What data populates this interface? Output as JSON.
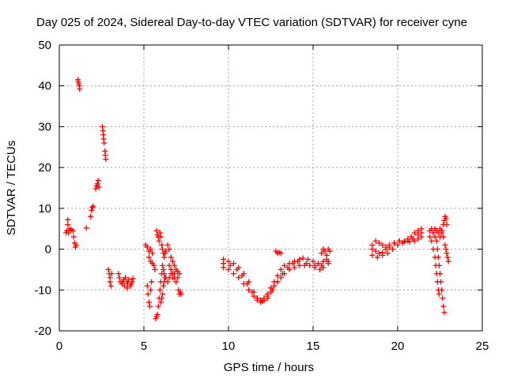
{
  "chart_data": {
    "type": "scatter",
    "title": "Day 025 of 2024, Sidereal Day-to-day VTEC variation (SDTVAR) for receiver cyne",
    "xlabel": "GPS time / hours",
    "ylabel": "SDTVAR / TECUs",
    "xlim": [
      0,
      25
    ],
    "ylim": [
      -20,
      50
    ],
    "xticks": [
      0,
      5,
      10,
      15,
      20,
      25
    ],
    "yticks": [
      -20,
      -10,
      0,
      10,
      20,
      30,
      40,
      50
    ],
    "grid": true,
    "marker": "+",
    "color": "#ff0000",
    "series": [
      {
        "name": "SDTVAR",
        "points": [
          [
            0.4,
            4
          ],
          [
            0.45,
            4.5
          ],
          [
            0.5,
            6
          ],
          [
            0.5,
            7.2
          ],
          [
            0.55,
            4
          ],
          [
            0.6,
            5
          ],
          [
            0.7,
            4.8
          ],
          [
            0.8,
            4.5
          ],
          [
            0.85,
            3
          ],
          [
            0.9,
            1.5
          ],
          [
            0.95,
            0.5
          ],
          [
            1.0,
            1
          ],
          [
            1.1,
            41.5
          ],
          [
            1.12,
            41
          ],
          [
            1.15,
            40.5
          ],
          [
            1.18,
            40
          ],
          [
            1.2,
            39.2
          ],
          [
            1.6,
            5.2
          ],
          [
            1.85,
            8
          ],
          [
            1.9,
            9.5
          ],
          [
            1.95,
            10.2
          ],
          [
            2.0,
            10.5
          ],
          [
            2.15,
            14.8
          ],
          [
            2.2,
            15.5
          ],
          [
            2.25,
            16
          ],
          [
            2.3,
            16.8
          ],
          [
            2.35,
            15.2
          ],
          [
            2.55,
            30
          ],
          [
            2.58,
            29
          ],
          [
            2.6,
            28
          ],
          [
            2.62,
            27
          ],
          [
            2.65,
            26
          ],
          [
            2.7,
            24
          ],
          [
            2.72,
            23
          ],
          [
            2.75,
            22
          ],
          [
            2.9,
            -5
          ],
          [
            2.95,
            -6
          ],
          [
            3.0,
            -7
          ],
          [
            3.0,
            -8
          ],
          [
            3.05,
            -9
          ],
          [
            3.1,
            -6
          ],
          [
            3.5,
            -6
          ],
          [
            3.55,
            -7
          ],
          [
            3.6,
            -8
          ],
          [
            3.7,
            -8.5
          ],
          [
            3.75,
            -8
          ],
          [
            3.8,
            -7.5
          ],
          [
            3.9,
            -7
          ],
          [
            4.0,
            -8
          ],
          [
            4.05,
            -8.5
          ],
          [
            4.1,
            -7.5
          ],
          [
            4.2,
            -9
          ],
          [
            4.25,
            -8.5
          ],
          [
            4.3,
            -8
          ],
          [
            4.35,
            -7.2
          ],
          [
            3.85,
            -9
          ],
          [
            4.0,
            -9.5
          ],
          [
            5.1,
            1
          ],
          [
            5.2,
            0.5
          ],
          [
            5.3,
            -0.5
          ],
          [
            5.4,
            0
          ],
          [
            5.5,
            -1
          ],
          [
            5.3,
            -2
          ],
          [
            5.4,
            -3
          ],
          [
            5.5,
            -3.5
          ],
          [
            5.6,
            -4
          ],
          [
            5.65,
            -5
          ],
          [
            5.2,
            -9
          ],
          [
            5.25,
            -11
          ],
          [
            5.3,
            -13
          ],
          [
            5.35,
            -14
          ],
          [
            5.4,
            -10
          ],
          [
            5.45,
            -8
          ],
          [
            5.75,
            4.5
          ],
          [
            5.8,
            3.5
          ],
          [
            5.85,
            3
          ],
          [
            5.9,
            2
          ],
          [
            5.95,
            4
          ],
          [
            6.0,
            3
          ],
          [
            6.05,
            1
          ],
          [
            6.1,
            0
          ],
          [
            6.15,
            -1
          ],
          [
            6.2,
            -2
          ],
          [
            6.25,
            -1
          ],
          [
            6.3,
            -0.5
          ],
          [
            6.4,
            1
          ],
          [
            6.5,
            0
          ],
          [
            6.6,
            -2
          ],
          [
            6.7,
            -3
          ],
          [
            6.8,
            -4
          ],
          [
            5.7,
            -17
          ],
          [
            5.75,
            -16.5
          ],
          [
            5.8,
            -16
          ],
          [
            5.85,
            -14
          ],
          [
            5.9,
            -12
          ],
          [
            5.95,
            -10
          ],
          [
            6.0,
            -8
          ],
          [
            6.05,
            -6
          ],
          [
            6.1,
            -4
          ],
          [
            6.15,
            -5
          ],
          [
            6.2,
            -6
          ],
          [
            6.25,
            -7
          ],
          [
            6.0,
            -13
          ],
          [
            6.05,
            -12
          ],
          [
            6.1,
            -11
          ],
          [
            6.15,
            -9
          ],
          [
            6.2,
            -8
          ],
          [
            6.3,
            -7
          ],
          [
            6.4,
            -8
          ],
          [
            6.5,
            -7
          ],
          [
            6.6,
            -6
          ],
          [
            6.7,
            -7
          ],
          [
            6.8,
            -6
          ],
          [
            6.9,
            -5
          ],
          [
            7.0,
            -5.5
          ],
          [
            7.1,
            -6
          ],
          [
            6.5,
            -4
          ],
          [
            6.6,
            -5
          ],
          [
            6.7,
            -6
          ],
          [
            6.8,
            -7
          ],
          [
            6.9,
            -8
          ],
          [
            7.0,
            -7
          ],
          [
            7.05,
            -10
          ],
          [
            7.1,
            -11
          ],
          [
            7.15,
            -10.5
          ],
          [
            7.2,
            -11
          ],
          [
            9.7,
            -2.5
          ],
          [
            10.0,
            -3
          ],
          [
            10.3,
            -3.5
          ],
          [
            10.6,
            -4.5
          ],
          [
            10.9,
            -6
          ],
          [
            11.2,
            -8
          ],
          [
            11.5,
            -10.5
          ],
          [
            11.7,
            -12
          ],
          [
            11.9,
            -12.5
          ],
          [
            12.1,
            -12
          ],
          [
            12.3,
            -11
          ],
          [
            12.5,
            -9.5
          ],
          [
            12.7,
            -8
          ],
          [
            12.9,
            -6.5
          ],
          [
            13.1,
            -5
          ],
          [
            13.3,
            -4
          ],
          [
            13.6,
            -3.5
          ],
          [
            13.9,
            -3
          ],
          [
            14.2,
            -2.5
          ],
          [
            14.4,
            -2.2
          ],
          [
            14.7,
            -2.5
          ],
          [
            15.0,
            -3
          ],
          [
            15.3,
            -3.5
          ],
          [
            15.6,
            -3
          ],
          [
            15.8,
            -2.5
          ],
          [
            9.7,
            -4.5
          ],
          [
            10.0,
            -5
          ],
          [
            10.3,
            -6
          ],
          [
            10.6,
            -7
          ],
          [
            10.9,
            -8.5
          ],
          [
            11.2,
            -10
          ],
          [
            11.5,
            -11.5
          ],
          [
            11.7,
            -12.5
          ],
          [
            11.9,
            -13
          ],
          [
            12.1,
            -12.5
          ],
          [
            12.3,
            -11.5
          ],
          [
            12.5,
            -10.5
          ],
          [
            12.7,
            -9
          ],
          [
            12.9,
            -8
          ],
          [
            13.1,
            -7
          ],
          [
            13.3,
            -6
          ],
          [
            13.6,
            -5
          ],
          [
            13.9,
            -4.5
          ],
          [
            14.2,
            -4
          ],
          [
            14.5,
            -4
          ],
          [
            14.8,
            -4
          ],
          [
            15.1,
            -4.5
          ],
          [
            15.4,
            -5
          ],
          [
            15.6,
            -4.5
          ],
          [
            15.9,
            -3.5
          ],
          [
            9.7,
            -3.5
          ],
          [
            10.1,
            -4
          ],
          [
            10.5,
            -5
          ],
          [
            10.8,
            -6.5
          ],
          [
            11.1,
            -8.5
          ],
          [
            11.4,
            -10.5
          ],
          [
            11.7,
            -12
          ],
          [
            12.0,
            -12.8
          ],
          [
            12.3,
            -12
          ],
          [
            12.6,
            -10
          ],
          [
            12.9,
            -8
          ],
          [
            13.2,
            -6
          ],
          [
            13.5,
            -4.5
          ],
          [
            13.8,
            -3.5
          ],
          [
            14.1,
            -3
          ],
          [
            14.6,
            -3.5
          ],
          [
            15.1,
            -4
          ],
          [
            15.5,
            -4
          ],
          [
            15.9,
            -3
          ],
          [
            12.8,
            -0.5
          ],
          [
            12.9,
            -1
          ],
          [
            13.0,
            -0.8
          ],
          [
            13.1,
            -1
          ],
          [
            15.5,
            -1
          ],
          [
            15.6,
            0
          ],
          [
            15.7,
            -0.5
          ],
          [
            15.8,
            -1.5
          ],
          [
            15.9,
            0
          ],
          [
            16.0,
            -0.5
          ],
          [
            18.5,
            1
          ],
          [
            18.7,
            2
          ],
          [
            18.9,
            1.5
          ],
          [
            19.1,
            1
          ],
          [
            19.3,
            0.5
          ],
          [
            19.5,
            1
          ],
          [
            19.8,
            1.5
          ],
          [
            20.1,
            2
          ],
          [
            20.4,
            1.8
          ],
          [
            20.6,
            2.5
          ],
          [
            20.8,
            3
          ],
          [
            21.0,
            4
          ],
          [
            21.2,
            4.5
          ],
          [
            21.4,
            5
          ],
          [
            18.5,
            0
          ],
          [
            18.7,
            -0.5
          ],
          [
            18.9,
            -1
          ],
          [
            19.1,
            -0.8
          ],
          [
            19.3,
            0
          ],
          [
            19.5,
            0.5
          ],
          [
            19.8,
            1.5
          ],
          [
            20.1,
            2
          ],
          [
            20.4,
            2
          ],
          [
            20.7,
            1.8
          ],
          [
            21.0,
            2
          ],
          [
            21.2,
            2.5
          ],
          [
            21.4,
            3
          ],
          [
            18.5,
            -1.5
          ],
          [
            18.8,
            -2
          ],
          [
            19.1,
            -1.5
          ],
          [
            19.4,
            -1
          ],
          [
            19.7,
            0
          ],
          [
            20.0,
            1
          ],
          [
            20.3,
            1.5
          ],
          [
            20.6,
            2
          ],
          [
            20.9,
            2.5
          ],
          [
            21.2,
            3.5
          ],
          [
            21.4,
            4
          ],
          [
            21.9,
            4.5
          ],
          [
            22.0,
            5
          ],
          [
            22.1,
            4
          ],
          [
            22.2,
            3
          ],
          [
            22.3,
            2
          ],
          [
            22.35,
            0
          ],
          [
            22.4,
            -2
          ],
          [
            22.45,
            -4
          ],
          [
            22.5,
            -6
          ],
          [
            22.55,
            -8
          ],
          [
            22.6,
            -10
          ],
          [
            22.65,
            -12
          ],
          [
            22.7,
            -14
          ],
          [
            22.75,
            -15.5
          ],
          [
            21.9,
            3
          ],
          [
            22.0,
            2
          ],
          [
            22.1,
            0
          ],
          [
            22.2,
            -2
          ],
          [
            22.25,
            -4
          ],
          [
            22.3,
            -6
          ],
          [
            22.35,
            -8
          ],
          [
            22.4,
            -10
          ],
          [
            22.45,
            -11
          ],
          [
            22.1,
            4
          ],
          [
            22.2,
            5
          ],
          [
            22.3,
            4.5
          ],
          [
            22.4,
            4
          ],
          [
            22.5,
            5
          ],
          [
            22.6,
            4
          ],
          [
            22.7,
            3
          ],
          [
            22.8,
            1
          ],
          [
            22.85,
            0
          ],
          [
            22.9,
            -1
          ],
          [
            22.95,
            -2
          ],
          [
            23.0,
            -3
          ],
          [
            22.5,
            3
          ],
          [
            22.6,
            4.5
          ],
          [
            22.7,
            6
          ],
          [
            22.75,
            7
          ],
          [
            22.8,
            8
          ],
          [
            22.85,
            7.5
          ],
          [
            22.9,
            6
          ]
        ]
      }
    ]
  }
}
